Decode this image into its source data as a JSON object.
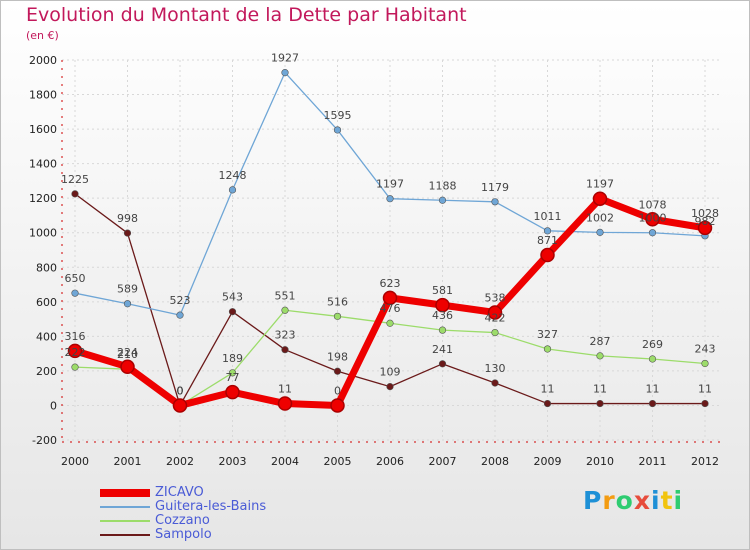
{
  "chart_data": {
    "type": "line",
    "title": "Evolution du Montant de la Dette par Habitant",
    "subtitle": "(en €)",
    "x": [
      "2000",
      "2001",
      "2002",
      "2003",
      "2004",
      "2005",
      "2006",
      "2007",
      "2008",
      "2009",
      "2010",
      "2011",
      "2012"
    ],
    "ylim": [
      -200,
      2000
    ],
    "yticks": [
      -200,
      0,
      200,
      400,
      600,
      800,
      1000,
      1200,
      1400,
      1600,
      1800,
      2000
    ],
    "legend_position": "bottom-left",
    "series": [
      {
        "name": "Sampolo",
        "color": "#6b1a1a",
        "values": [
          1225,
          998,
          0,
          543,
          323,
          198,
          109,
          241,
          130,
          11,
          11,
          11,
          11
        ]
      },
      {
        "name": "Cozzano",
        "color": "#9cdc6a",
        "values": [
          222,
          210,
          0,
          189,
          551,
          516,
          476,
          436,
          422,
          327,
          287,
          269,
          243
        ]
      },
      {
        "name": "Guitera-les-Bains",
        "color": "#6fa6d6",
        "values": [
          650,
          589,
          523,
          1248,
          1927,
          1595,
          1197,
          1188,
          1179,
          1011,
          1002,
          1000,
          982
        ]
      },
      {
        "name": "ZICAVO",
        "color": "#ee0000",
        "values": [
          316,
          224,
          0,
          77,
          11,
          0,
          623,
          581,
          538,
          871,
          1197,
          1078,
          1028
        ]
      }
    ]
  },
  "legend": {
    "items": [
      {
        "name": "ZICAVO",
        "color": "#ee0000",
        "thickness": 8
      },
      {
        "name": "Guitera-les-Bains",
        "color": "#6fa6d6",
        "thickness": 2
      },
      {
        "name": "Cozzano",
        "color": "#9cdc6a",
        "thickness": 2
      },
      {
        "name": "Sampolo",
        "color": "#6b1a1a",
        "thickness": 2
      }
    ]
  },
  "logo": {
    "letters": [
      "P",
      "r",
      "o",
      "x",
      "i",
      "t",
      "i"
    ],
    "colors": [
      "#1e90d6",
      "#f39c12",
      "#2ecc71",
      "#e74c3c",
      "#1e90d6",
      "#f1c40f",
      "#2ecc71"
    ]
  }
}
